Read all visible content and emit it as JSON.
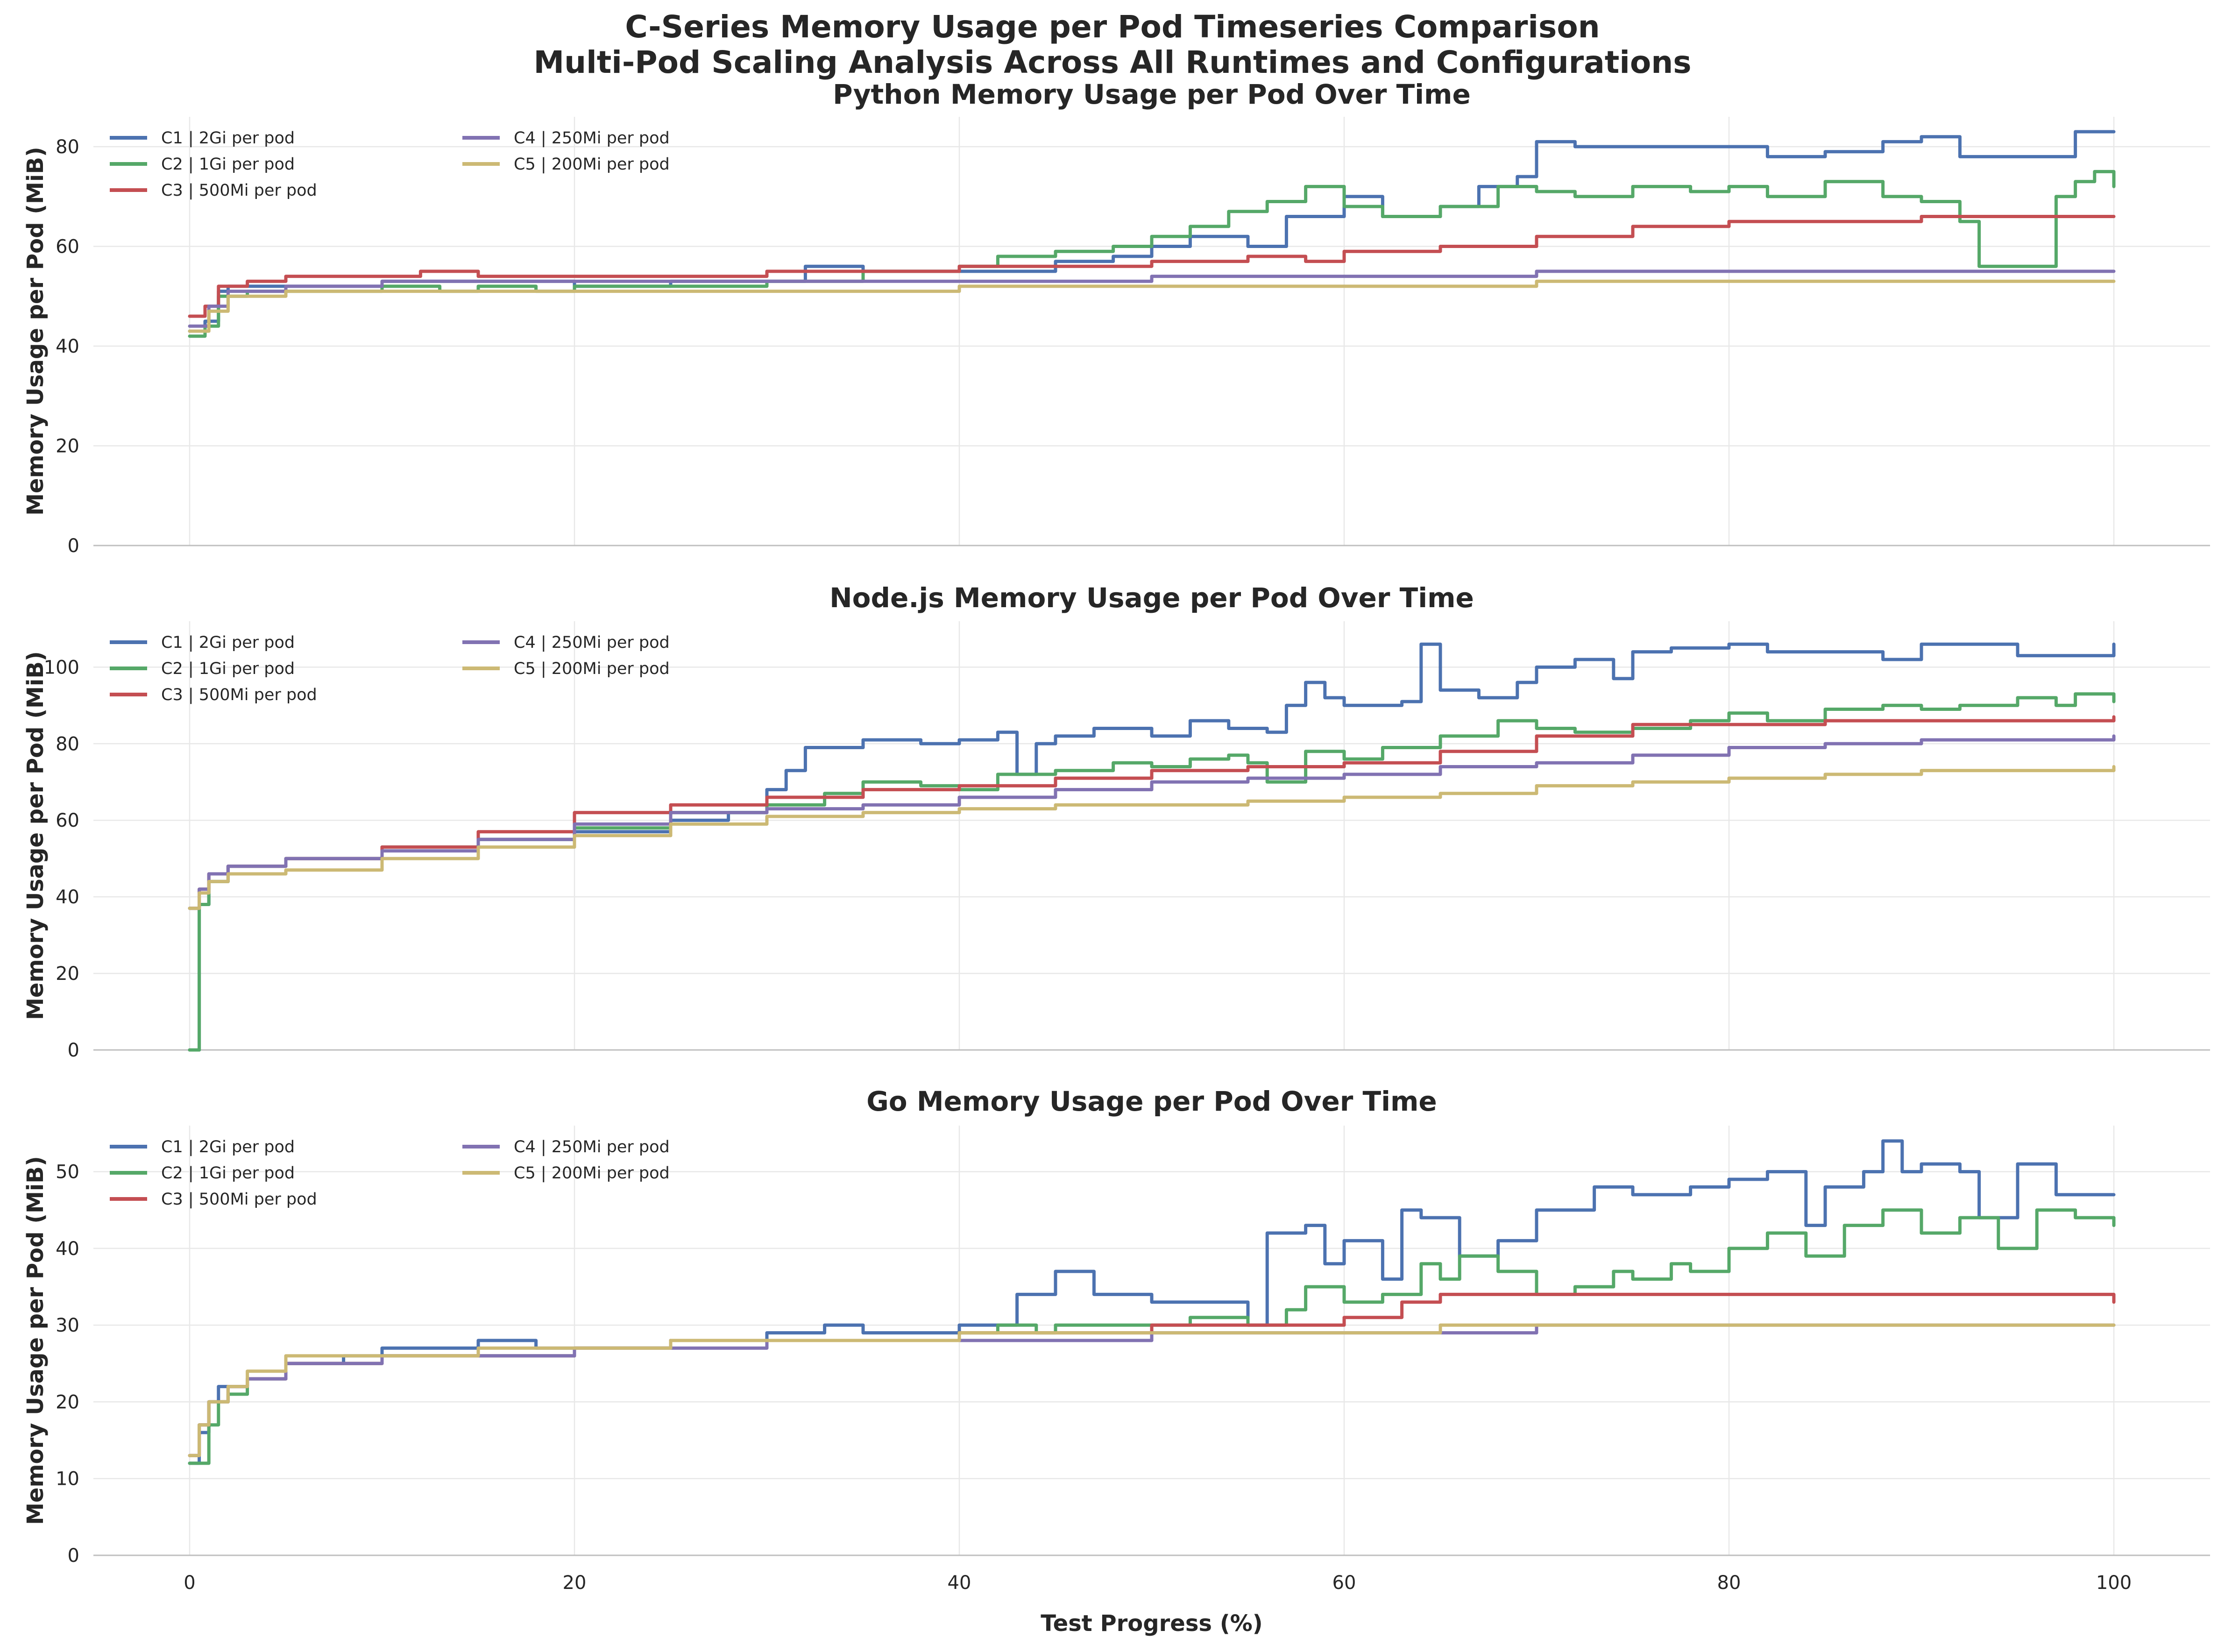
{
  "figure": {
    "title_line1": "C-Series Memory Usage per Pod Timeseries Comparison",
    "title_line2": "Multi-Pod Scaling Analysis Across All Runtimes and Configurations",
    "xlabel": "Test Progress (%)"
  },
  "chart_data": [
    {
      "type": "line",
      "line_shape": "step",
      "title": "Python Memory Usage per Pod Over Time",
      "xlabel": "",
      "ylabel": "Memory Usage per Pod (MiB)",
      "xlim": [
        -5,
        105
      ],
      "ylim": [
        0,
        86
      ],
      "xticks": [
        0,
        20,
        40,
        60,
        80,
        100
      ],
      "yticks": [
        0,
        20,
        40,
        60,
        80
      ],
      "grid": true,
      "legend_position": "top-left",
      "series": [
        {
          "name": "C1 | 2Gi per pod",
          "color": "#4c72b0",
          "x": [
            0,
            0.8,
            1.5,
            2,
            5,
            10,
            15,
            20,
            25,
            30,
            32,
            35,
            40,
            43,
            45,
            48,
            50,
            52,
            55,
            57,
            60,
            62,
            65,
            67,
            69,
            70,
            72,
            75,
            80,
            82,
            85,
            88,
            90,
            92,
            95,
            98,
            100
          ],
          "y": [
            43,
            45,
            51,
            52,
            52,
            53,
            53,
            52,
            53,
            53,
            56,
            55,
            55,
            55,
            57,
            58,
            60,
            62,
            60,
            66,
            70,
            66,
            68,
            72,
            74,
            81,
            80,
            80,
            80,
            78,
            79,
            81,
            82,
            78,
            78,
            83,
            83
          ]
        },
        {
          "name": "C2 | 1Gi per pod",
          "color": "#55a868",
          "x": [
            0,
            0.8,
            1.5,
            3,
            5,
            10,
            13,
            15,
            18,
            20,
            25,
            30,
            35,
            40,
            42,
            45,
            48,
            50,
            52,
            54,
            56,
            58,
            60,
            62,
            65,
            68,
            70,
            72,
            75,
            78,
            80,
            82,
            85,
            88,
            90,
            92,
            93,
            95,
            96,
            97,
            98,
            99,
            100
          ],
          "y": [
            42,
            44,
            50,
            51,
            51,
            52,
            51,
            52,
            51,
            52,
            52,
            53,
            55,
            56,
            58,
            59,
            60,
            62,
            64,
            67,
            69,
            72,
            68,
            66,
            68,
            72,
            71,
            70,
            72,
            71,
            72,
            70,
            73,
            70,
            69,
            65,
            56,
            56,
            56,
            70,
            73,
            75,
            72
          ]
        },
        {
          "name": "C3 | 500Mi per pod",
          "color": "#c44e52",
          "x": [
            0,
            0.8,
            1.5,
            3,
            5,
            8,
            10,
            12,
            15,
            20,
            25,
            30,
            35,
            40,
            45,
            50,
            55,
            58,
            60,
            65,
            70,
            75,
            80,
            85,
            90,
            95,
            100
          ],
          "y": [
            46,
            48,
            52,
            53,
            54,
            54,
            54,
            55,
            54,
            54,
            54,
            55,
            55,
            56,
            56,
            57,
            58,
            57,
            59,
            60,
            62,
            64,
            65,
            65,
            66,
            66,
            66
          ]
        },
        {
          "name": "C4 | 250Mi per pod",
          "color": "#8172b2",
          "x": [
            0,
            1,
            2,
            5,
            10,
            15,
            20,
            30,
            40,
            50,
            60,
            70,
            80,
            90,
            95,
            100
          ],
          "y": [
            44,
            48,
            51,
            52,
            53,
            53,
            53,
            53,
            53,
            54,
            54,
            55,
            55,
            55,
            55,
            55
          ]
        },
        {
          "name": "C5 | 200Mi per pod",
          "color": "#ccb974",
          "x": [
            0,
            1,
            2,
            5,
            10,
            15,
            20,
            30,
            40,
            50,
            60,
            70,
            80,
            90,
            100
          ],
          "y": [
            43,
            47,
            50,
            51,
            51,
            51,
            51,
            51,
            52,
            52,
            52,
            53,
            53,
            53,
            53
          ]
        }
      ]
    },
    {
      "type": "line",
      "line_shape": "step",
      "title": "Node.js Memory Usage per Pod Over Time",
      "xlabel": "",
      "ylabel": "Memory Usage per Pod (MiB)",
      "xlim": [
        -5,
        105
      ],
      "ylim": [
        0,
        112
      ],
      "xticks": [
        0,
        20,
        40,
        60,
        80,
        100
      ],
      "yticks": [
        0,
        20,
        40,
        60,
        80,
        100
      ],
      "grid": true,
      "legend_position": "top-left",
      "series": [
        {
          "name": "C1 | 2Gi per pod",
          "color": "#4c72b0",
          "x": [
            0,
            0.4,
            0.5,
            1,
            2,
            5,
            10,
            15,
            20,
            25,
            28,
            30,
            31,
            32,
            35,
            38,
            40,
            42,
            43,
            44,
            45,
            47,
            50,
            52,
            54,
            56,
            57,
            58,
            59,
            60,
            63,
            64,
            65,
            67,
            69,
            70,
            72,
            74,
            75,
            77,
            80,
            82,
            85,
            88,
            90,
            92,
            95,
            98,
            100
          ],
          "y": [
            0,
            0,
            38,
            44,
            48,
            50,
            53,
            55,
            57,
            60,
            62,
            68,
            73,
            79,
            81,
            80,
            81,
            83,
            72,
            80,
            82,
            84,
            82,
            86,
            84,
            83,
            90,
            96,
            92,
            90,
            91,
            106,
            94,
            92,
            96,
            100,
            102,
            97,
            104,
            105,
            106,
            104,
            104,
            102,
            106,
            106,
            103,
            103,
            106
          ]
        },
        {
          "name": "C2 | 1Gi per pod",
          "color": "#55a868",
          "x": [
            0,
            0.4,
            0.5,
            1,
            2,
            5,
            10,
            15,
            20,
            25,
            30,
            33,
            35,
            38,
            40,
            42,
            45,
            48,
            50,
            52,
            54,
            55,
            56,
            58,
            60,
            62,
            65,
            68,
            70,
            72,
            75,
            78,
            80,
            82,
            85,
            88,
            90,
            92,
            95,
            97,
            98,
            100
          ],
          "y": [
            0,
            0,
            38,
            44,
            48,
            50,
            53,
            55,
            58,
            62,
            64,
            67,
            70,
            69,
            68,
            72,
            73,
            75,
            74,
            76,
            77,
            75,
            70,
            78,
            76,
            79,
            82,
            86,
            84,
            83,
            84,
            86,
            88,
            86,
            89,
            90,
            89,
            90,
            92,
            90,
            93,
            91
          ]
        },
        {
          "name": "C3 | 500Mi per pod",
          "color": "#c44e52",
          "x": [
            0,
            0.5,
            1,
            2,
            5,
            10,
            15,
            20,
            25,
            30,
            35,
            40,
            45,
            50,
            55,
            60,
            65,
            70,
            75,
            80,
            85,
            90,
            95,
            100
          ],
          "y": [
            37,
            42,
            46,
            48,
            50,
            53,
            57,
            62,
            64,
            66,
            68,
            69,
            71,
            73,
            74,
            75,
            78,
            82,
            85,
            85,
            86,
            86,
            86,
            87
          ]
        },
        {
          "name": "C4 | 250Mi per pod",
          "color": "#8172b2",
          "x": [
            0,
            0.5,
            1,
            2,
            5,
            10,
            15,
            20,
            25,
            30,
            35,
            40,
            45,
            50,
            55,
            60,
            65,
            70,
            75,
            80,
            85,
            90,
            95,
            100
          ],
          "y": [
            37,
            42,
            46,
            48,
            50,
            52,
            55,
            59,
            62,
            63,
            64,
            66,
            68,
            70,
            71,
            72,
            74,
            75,
            77,
            79,
            80,
            81,
            81,
            82
          ]
        },
        {
          "name": "C5 | 200Mi per pod",
          "color": "#ccb974",
          "x": [
            0,
            0.5,
            1,
            2,
            5,
            10,
            15,
            20,
            25,
            30,
            35,
            40,
            45,
            50,
            55,
            60,
            65,
            70,
            75,
            80,
            85,
            90,
            95,
            100
          ],
          "y": [
            37,
            41,
            44,
            46,
            47,
            50,
            53,
            56,
            59,
            61,
            62,
            63,
            64,
            64,
            65,
            66,
            67,
            69,
            70,
            71,
            72,
            73,
            73,
            74
          ]
        }
      ]
    },
    {
      "type": "line",
      "line_shape": "step",
      "title": "Go Memory Usage per Pod Over Time",
      "xlabel": "Test Progress (%)",
      "ylabel": "Memory Usage per Pod (MiB)",
      "xlim": [
        -5,
        105
      ],
      "ylim": [
        0,
        56
      ],
      "xticks": [
        0,
        20,
        40,
        60,
        80,
        100
      ],
      "yticks": [
        0,
        10,
        20,
        30,
        40,
        50
      ],
      "grid": true,
      "legend_position": "top-left",
      "series": [
        {
          "name": "C1 | 2Gi per pod",
          "color": "#4c72b0",
          "x": [
            0,
            0.5,
            1,
            1.5,
            2,
            3,
            5,
            8,
            10,
            15,
            18,
            20,
            25,
            30,
            33,
            35,
            40,
            43,
            45,
            47,
            50,
            55,
            56,
            58,
            59,
            60,
            62,
            63,
            64,
            66,
            68,
            70,
            73,
            75,
            78,
            80,
            82,
            84,
            85,
            87,
            88,
            89,
            90,
            92,
            93,
            95,
            97,
            100
          ],
          "y": [
            12,
            16,
            20,
            22,
            22,
            23,
            25,
            26,
            27,
            28,
            27,
            27,
            28,
            29,
            30,
            29,
            30,
            34,
            37,
            34,
            33,
            30,
            42,
            43,
            38,
            41,
            36,
            45,
            44,
            39,
            41,
            45,
            48,
            47,
            48,
            49,
            50,
            43,
            48,
            50,
            54,
            50,
            51,
            50,
            44,
            51,
            47,
            47
          ]
        },
        {
          "name": "C2 | 1Gi per pod",
          "color": "#55a868",
          "x": [
            0,
            0.5,
            1,
            1.5,
            2,
            3,
            5,
            10,
            15,
            20,
            25,
            30,
            35,
            40,
            42,
            44,
            45,
            50,
            52,
            55,
            57,
            58,
            60,
            62,
            64,
            65,
            66,
            68,
            70,
            72,
            74,
            75,
            77,
            78,
            80,
            82,
            84,
            86,
            88,
            90,
            92,
            94,
            96,
            98,
            100
          ],
          "y": [
            12,
            12,
            17,
            20,
            21,
            23,
            25,
            26,
            26,
            27,
            28,
            28,
            28,
            29,
            30,
            29,
            30,
            30,
            31,
            30,
            32,
            35,
            33,
            34,
            38,
            36,
            39,
            37,
            34,
            35,
            37,
            36,
            38,
            37,
            40,
            42,
            39,
            43,
            45,
            42,
            44,
            40,
            45,
            44,
            43
          ]
        },
        {
          "name": "C3 | 500Mi per pod",
          "color": "#c44e52",
          "x": [
            0,
            0.5,
            1,
            2,
            3,
            5,
            10,
            15,
            20,
            25,
            30,
            35,
            40,
            45,
            50,
            55,
            60,
            63,
            65,
            70,
            75,
            80,
            85,
            90,
            95,
            100
          ],
          "y": [
            13,
            17,
            20,
            22,
            23,
            25,
            26,
            26,
            27,
            28,
            28,
            28,
            29,
            29,
            30,
            30,
            31,
            33,
            34,
            34,
            34,
            34,
            34,
            34,
            34,
            33
          ]
        },
        {
          "name": "C4 | 250Mi per pod",
          "color": "#8172b2",
          "x": [
            0,
            0.5,
            1,
            2,
            3,
            5,
            10,
            15,
            20,
            25,
            30,
            35,
            40,
            45,
            50,
            55,
            60,
            65,
            70,
            75,
            80,
            85,
            90,
            95,
            100
          ],
          "y": [
            13,
            17,
            20,
            22,
            23,
            25,
            26,
            26,
            27,
            27,
            28,
            28,
            28,
            28,
            29,
            29,
            29,
            29,
            30,
            30,
            30,
            30,
            30,
            30,
            30
          ]
        },
        {
          "name": "C5 | 200Mi per pod",
          "color": "#ccb974",
          "x": [
            0,
            0.5,
            1,
            2,
            3,
            5,
            10,
            15,
            20,
            25,
            30,
            35,
            40,
            45,
            50,
            55,
            60,
            65,
            70,
            75,
            80,
            85,
            90,
            95,
            100
          ],
          "y": [
            13,
            17,
            20,
            22,
            24,
            26,
            26,
            27,
            27,
            28,
            28,
            28,
            29,
            29,
            29,
            29,
            29,
            30,
            30,
            30,
            30,
            30,
            30,
            30,
            30
          ]
        }
      ]
    }
  ]
}
